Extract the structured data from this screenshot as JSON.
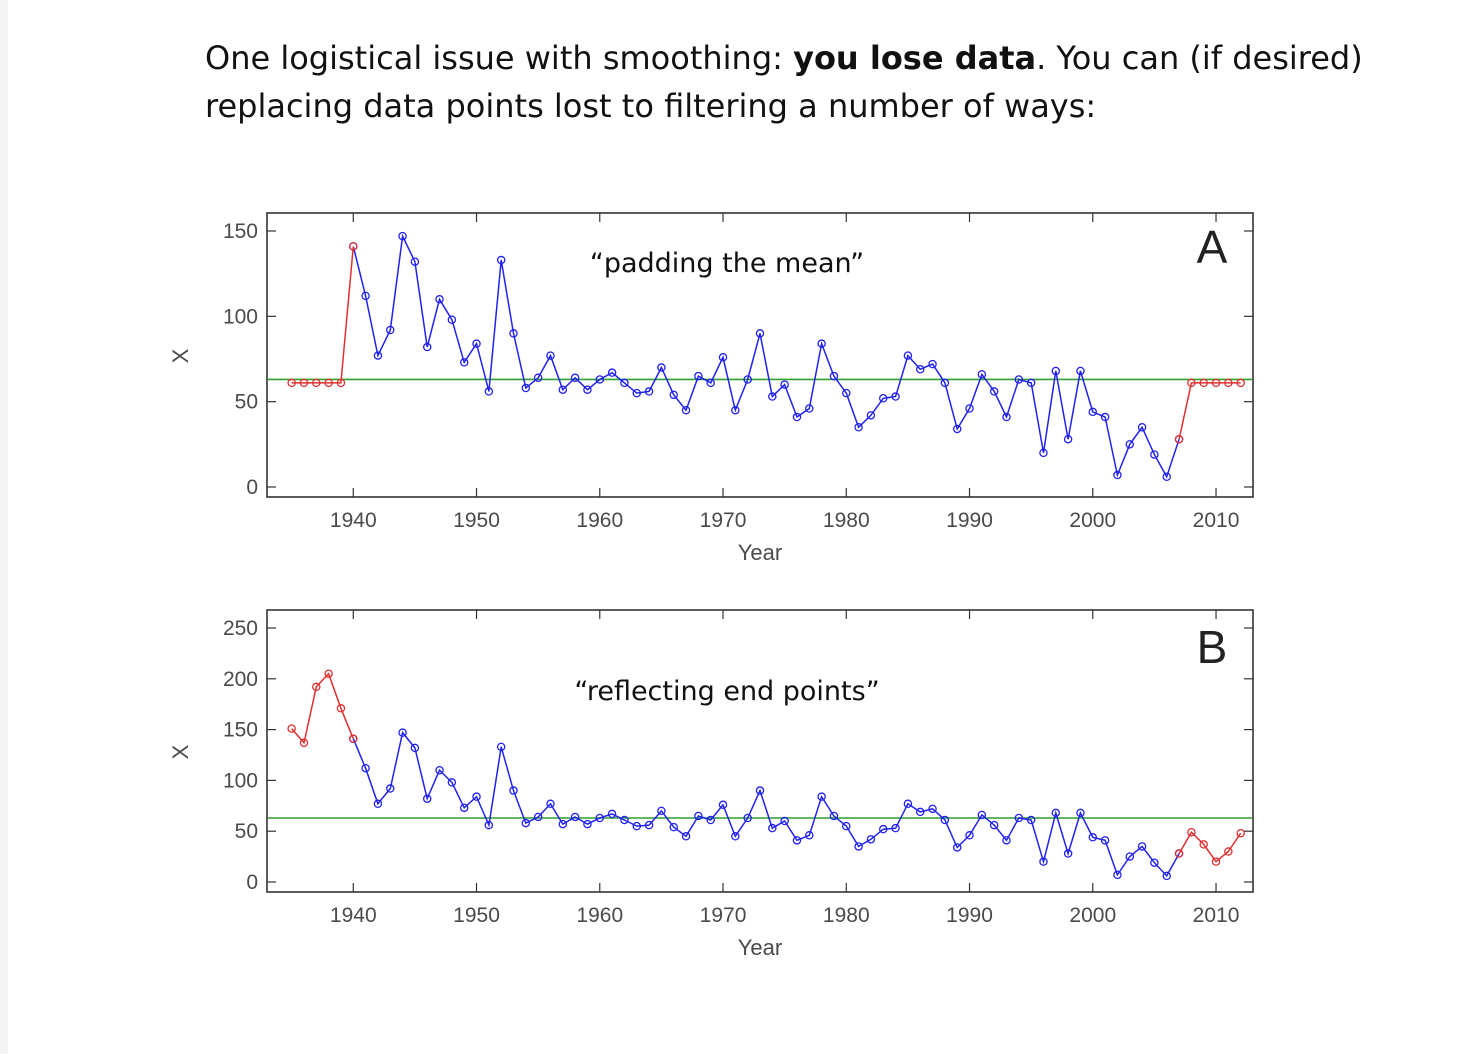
{
  "slide": {
    "text_before": "One logistical issue with smoothing: ",
    "text_bold": "you lose data",
    "text_after": ". You can (if desired) replacing data points lost to filtering a number of ways:"
  },
  "colors": {
    "original": "#2222ee",
    "filled": "#e03030",
    "mean": "#2ea02e",
    "frame": "#333333"
  },
  "chart_data": [
    {
      "type": "line",
      "title": "",
      "xlabel": "Year",
      "ylabel": "X",
      "xlim": [
        1933,
        2013
      ],
      "ylim": [
        0,
        150
      ],
      "yticks": [
        0,
        50,
        100,
        150
      ],
      "xticks": [
        1940,
        1950,
        1960,
        1970,
        1980,
        1990,
        2000,
        2010
      ],
      "annotation": "“padding the mean”",
      "panel_label": "A",
      "mean": 63,
      "series": [
        {
          "years": [
            1935,
            1936,
            1937,
            1938,
            1939,
            1940
          ],
          "values": [
            61,
            61,
            61,
            61,
            61,
            141
          ]
        },
        {
          "years": [
            1940,
            1941,
            1942,
            1943,
            1944,
            1945,
            1946,
            1947,
            1948,
            1949,
            1950,
            1951,
            1952,
            1953,
            1954,
            1955,
            1956,
            1957,
            1958,
            1959,
            1960,
            1961,
            1962,
            1963,
            1964,
            1965,
            1966,
            1967,
            1968,
            1969,
            1970,
            1971,
            1972,
            1973,
            1974,
            1975,
            1976,
            1977,
            1978,
            1979,
            1980,
            1981,
            1982,
            1983,
            1984,
            1985,
            1986,
            1987,
            1988,
            1989,
            1990,
            1991,
            1992,
            1993,
            1994,
            1995,
            1996,
            1997,
            1998,
            1999,
            2000,
            2001,
            2002,
            2003,
            2004,
            2005,
            2006,
            2007
          ],
          "values": [
            141,
            112,
            77,
            92,
            147,
            132,
            82,
            110,
            98,
            73,
            84,
            56,
            133,
            90,
            58,
            64,
            77,
            57,
            64,
            57,
            63,
            67,
            61,
            55,
            56,
            70,
            54,
            45,
            65,
            61,
            76,
            45,
            63,
            90,
            53,
            60,
            41,
            46,
            84,
            65,
            55,
            35,
            42,
            52,
            53,
            77,
            69,
            72,
            61,
            34,
            46,
            66,
            56,
            41,
            63,
            61,
            20,
            68,
            28,
            68,
            44,
            41,
            7,
            25,
            35,
            19,
            6,
            28
          ]
        },
        {
          "years": [
            2007,
            2008,
            2009,
            2010,
            2011,
            2012
          ],
          "values": [
            28,
            61,
            61,
            61,
            61,
            61
          ]
        }
      ]
    },
    {
      "type": "line",
      "title": "",
      "xlabel": "Year",
      "ylabel": "X",
      "xlim": [
        1933,
        2013
      ],
      "ylim": [
        0,
        250
      ],
      "yticks": [
        0,
        50,
        100,
        150,
        200,
        250
      ],
      "xticks": [
        1940,
        1950,
        1960,
        1970,
        1980,
        1990,
        2000,
        2010
      ],
      "annotation": "“reflecting end points”",
      "panel_label": "B",
      "mean": 63,
      "series": [
        {
          "years": [
            1935,
            1936,
            1937,
            1938,
            1939,
            1940
          ],
          "values": [
            151,
            137,
            192,
            205,
            171,
            141
          ]
        },
        {
          "years": [
            1940,
            1941,
            1942,
            1943,
            1944,
            1945,
            1946,
            1947,
            1948,
            1949,
            1950,
            1951,
            1952,
            1953,
            1954,
            1955,
            1956,
            1957,
            1958,
            1959,
            1960,
            1961,
            1962,
            1963,
            1964,
            1965,
            1966,
            1967,
            1968,
            1969,
            1970,
            1971,
            1972,
            1973,
            1974,
            1975,
            1976,
            1977,
            1978,
            1979,
            1980,
            1981,
            1982,
            1983,
            1984,
            1985,
            1986,
            1987,
            1988,
            1989,
            1990,
            1991,
            1992,
            1993,
            1994,
            1995,
            1996,
            1997,
            1998,
            1999,
            2000,
            2001,
            2002,
            2003,
            2004,
            2005,
            2006,
            2007
          ],
          "values": [
            141,
            112,
            77,
            92,
            147,
            132,
            82,
            110,
            98,
            73,
            84,
            56,
            133,
            90,
            58,
            64,
            77,
            57,
            64,
            57,
            63,
            67,
            61,
            55,
            56,
            70,
            54,
            45,
            65,
            61,
            76,
            45,
            63,
            90,
            53,
            60,
            41,
            46,
            84,
            65,
            55,
            35,
            42,
            52,
            53,
            77,
            69,
            72,
            61,
            34,
            46,
            66,
            56,
            41,
            63,
            61,
            20,
            68,
            28,
            68,
            44,
            41,
            7,
            25,
            35,
            19,
            6,
            28
          ]
        },
        {
          "years": [
            2007,
            2008,
            2009,
            2010,
            2011,
            2012
          ],
          "values": [
            28,
            49,
            37,
            20,
            30,
            48
          ]
        }
      ]
    }
  ]
}
